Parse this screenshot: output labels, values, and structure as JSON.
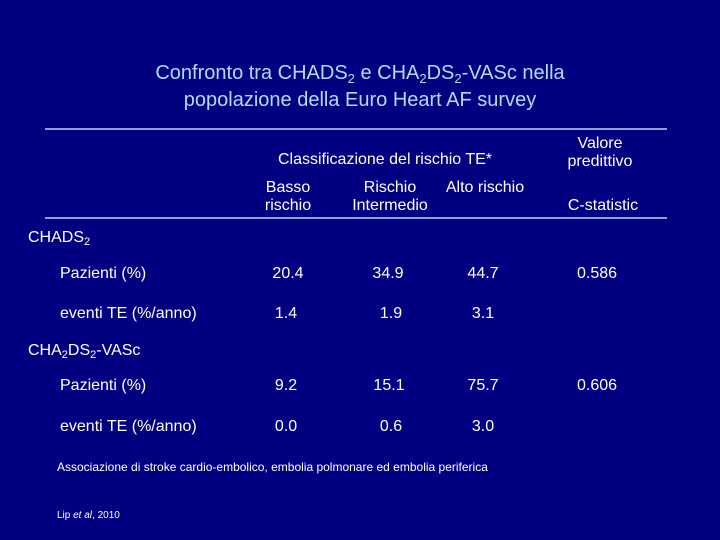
{
  "slide": {
    "title": {
      "line1_a": "Confronto tra CHADS",
      "line1_sub1": "2",
      "line1_b": " e CHA",
      "line1_sub2": "2",
      "line1_c": "DS",
      "line1_sub3": "2",
      "line1_d": "-VASc nella",
      "line2": "popolazione della Euro Heart AF survey"
    },
    "table": {
      "group_header": "Classificazione del rischio TE*",
      "predictive_header": "Valore predittivo",
      "col_low": "Basso rischio",
      "col_mid": "Rischio Intermedio",
      "col_high": "Alto rischio",
      "col_stat": "C-statistic",
      "sections": [
        {
          "name_a": "CHADS",
          "name_sub": "2",
          "name_b": "",
          "name_sub2": "",
          "name_c": "",
          "rows": [
            {
              "label": "Pazienti (%)",
              "low": "20.4",
              "mid": "34.9",
              "high": "44.7",
              "stat": "0.586"
            },
            {
              "label": "eventi TE (%/anno)",
              "low": "1.4",
              "mid": "1.9",
              "high": "3.1",
              "stat": ""
            }
          ]
        },
        {
          "name_a": "CHA",
          "name_sub": "2",
          "name_b": "DS",
          "name_sub2": "2",
          "name_c": "-VASc",
          "rows": [
            {
              "label": "Pazienti (%)",
              "low": "9.2",
              "mid": "15.1",
              "high": "75.7",
              "stat": "0.606"
            },
            {
              "label": "eventi TE (%/anno)",
              "low": "0.0",
              "mid": "0.6",
              "high": "3.0",
              "stat": ""
            }
          ]
        }
      ]
    },
    "footnote": "Associazione di stroke cardio-embolico, embolia polmonare ed embolia periferica",
    "citation_a": "Lip ",
    "citation_italic": "et al",
    "citation_b": ", 2010",
    "colors": {
      "background": "#000080",
      "title": "#aedcf5",
      "text": "#ffffff",
      "rule": "#8fa0cf"
    }
  }
}
